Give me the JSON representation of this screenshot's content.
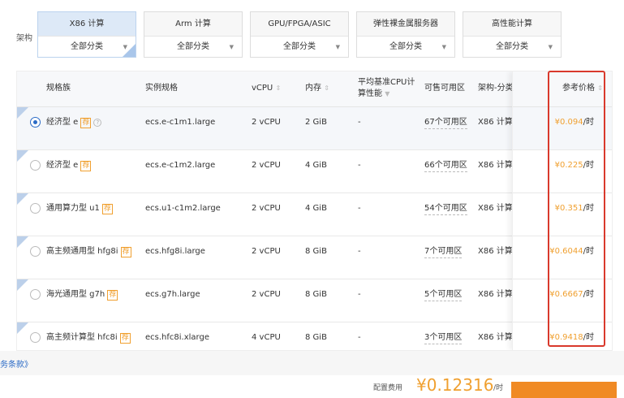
{
  "arch": {
    "label": "架构",
    "options": [
      {
        "title": "X86 计算",
        "sub": "全部分类",
        "active": true
      },
      {
        "title": "Arm 计算",
        "sub": "全部分类"
      },
      {
        "title": "GPU/FPGA/ASIC",
        "sub": "全部分类"
      },
      {
        "title": "弹性裸金属服务器",
        "sub": "全部分类"
      },
      {
        "title": "高性能计算",
        "sub": "全部分类"
      }
    ]
  },
  "table": {
    "headers": {
      "family": "规格族",
      "spec": "实例规格",
      "vcpu": "vCPU",
      "mem": "内存",
      "perf1": "平均基准CPU计",
      "perf2": "算性能",
      "zones": "可售可用区",
      "arch": "架构-分类",
      "price": "参考价格"
    },
    "tag": "荐",
    "rows": [
      {
        "family": "经济型 e",
        "spec": "ecs.e-c1m1.large",
        "vcpu": "2 vCPU",
        "mem": "2 GiB",
        "perf": "-",
        "zones": "67个可用区",
        "arch": "X86 计算",
        "price": "¥0.094",
        "unit": "/时",
        "selected": true
      },
      {
        "family": "经济型 e",
        "spec": "ecs.e-c1m2.large",
        "vcpu": "2 vCPU",
        "mem": "4 GiB",
        "perf": "-",
        "zones": "66个可用区",
        "arch": "X86 计算",
        "price": "¥0.225",
        "unit": "/时"
      },
      {
        "family": "通用算力型 u1",
        "spec": "ecs.u1-c1m2.large",
        "vcpu": "2 vCPU",
        "mem": "4 GiB",
        "perf": "-",
        "zones": "54个可用区",
        "arch": "X86 计算",
        "price": "¥0.351",
        "unit": "/时"
      },
      {
        "family": "高主频通用型 hfg8i",
        "spec": "ecs.hfg8i.large",
        "vcpu": "2 vCPU",
        "mem": "8 GiB",
        "perf": "-",
        "zones": "7个可用区",
        "arch": "X86 计算",
        "price": "¥0.6044",
        "unit": "/时"
      },
      {
        "family": "海光通用型 g7h",
        "spec": "ecs.g7h.large",
        "vcpu": "2 vCPU",
        "mem": "8 GiB",
        "perf": "-",
        "zones": "5个可用区",
        "arch": "X86 计算",
        "price": "¥0.6667",
        "unit": "/时"
      },
      {
        "family": "高主频计算型 hfc8i",
        "spec": "ecs.hfc8i.xlarge",
        "vcpu": "4 vCPU",
        "mem": "8 GiB",
        "perf": "-",
        "zones": "3个可用区",
        "arch": "X86 计算",
        "price": "¥0.9418",
        "unit": "/时"
      }
    ]
  },
  "footer": {
    "terms": "务条款》",
    "fee_label": "配置费用",
    "fee": "¥0.12316",
    "fee_unit": "/时"
  },
  "colors": {
    "accent": "#f0a030",
    "highlight": "#d9392c",
    "primary": "#2b6bc6"
  }
}
